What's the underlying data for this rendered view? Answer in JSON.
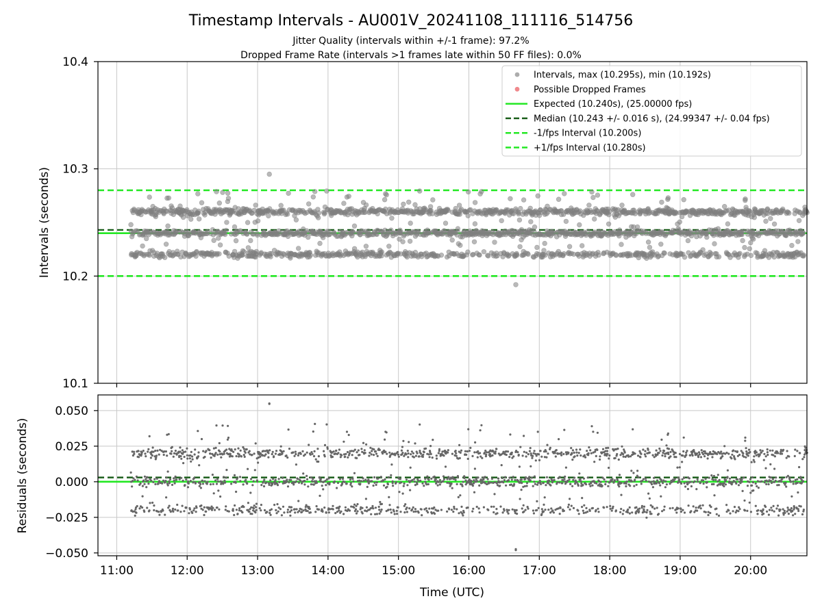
{
  "figure": {
    "title": "Timestamp Intervals - AU001V_20241108_111116_514756",
    "subtitle_1": "Jitter Quality (intervals within +/-1 frame): 97.2%",
    "subtitle_2": "Dropped Frame Rate (intervals >1 frames late within 50 FF files): 0.0%"
  },
  "colors": {
    "points": "#808080",
    "dropped": "#e8484f",
    "expected": "#22e822",
    "median": "#1a5e1a",
    "fps_bounds": "#22e822",
    "grid": "#c8c8c8"
  },
  "legend": {
    "placement": "upper-right",
    "entries": [
      {
        "label": "Intervals, max (10.295s), min (10.192s)",
        "kind": "point",
        "color": "#808080"
      },
      {
        "label": "Possible Dropped Frames",
        "kind": "point",
        "color": "#e8484f"
      },
      {
        "label": "Expected (10.240s), (25.00000 fps)",
        "kind": "solid",
        "color": "#22e822"
      },
      {
        "label": "Median (10.243 +/- 0.016 s), (24.99347 +/- 0.04 fps)",
        "kind": "dashed",
        "color": "#1a5e1a"
      },
      {
        "label": "-1/fps Interval (10.200s)",
        "kind": "dashed",
        "color": "#22e822"
      },
      {
        "label": "+1/fps Interval (10.280s)",
        "kind": "dashed",
        "color": "#22e822"
      }
    ]
  },
  "chart_data": [
    {
      "type": "scatter",
      "panel": "intervals",
      "ylabel": "Intervals (seconds)",
      "xlim": [
        "10:44",
        "20:48"
      ],
      "ylim": [
        10.1,
        10.4
      ],
      "y_ticks": [
        "10.1",
        "10.2",
        "10.3",
        "10.4"
      ],
      "y_tick_values": [
        10.1,
        10.2,
        10.3,
        10.4
      ],
      "grid": true,
      "x_range_points": [
        "11:12",
        "20:48"
      ],
      "y_levels": [
        10.22,
        10.24,
        10.26
      ],
      "y_min": 10.192,
      "y_max": 10.295,
      "reference_lines": [
        {
          "name": "expected",
          "y": 10.24,
          "style": "solid"
        },
        {
          "name": "median",
          "y": 10.243,
          "style": "dashed"
        },
        {
          "name": "minus_1_fps",
          "y": 10.2,
          "style": "dashed"
        },
        {
          "name": "plus_1_fps",
          "y": 10.28,
          "style": "dashed"
        }
      ]
    },
    {
      "type": "scatter",
      "panel": "residuals",
      "xlabel": "Time (UTC)",
      "ylabel": "Residuals (seconds)",
      "x_ticks": [
        "11:00",
        "12:00",
        "13:00",
        "14:00",
        "15:00",
        "16:00",
        "17:00",
        "18:00",
        "19:00",
        "20:00"
      ],
      "xlim": [
        "10:44",
        "20:48"
      ],
      "ylim": [
        -0.052,
        0.061
      ],
      "y_ticks": [
        "−0.050",
        "−0.025",
        "0.000",
        "0.025",
        "0.050"
      ],
      "y_tick_values": [
        -0.05,
        -0.025,
        0.0,
        0.025,
        0.05
      ],
      "grid": true,
      "y_levels": [
        -0.02,
        0.0,
        0.02
      ],
      "y_min": -0.048,
      "y_max": 0.055,
      "reference_lines": [
        {
          "name": "zero",
          "y": 0.0,
          "style": "solid"
        },
        {
          "name": "median_offset",
          "y": 0.003,
          "style": "dashed"
        }
      ]
    }
  ]
}
